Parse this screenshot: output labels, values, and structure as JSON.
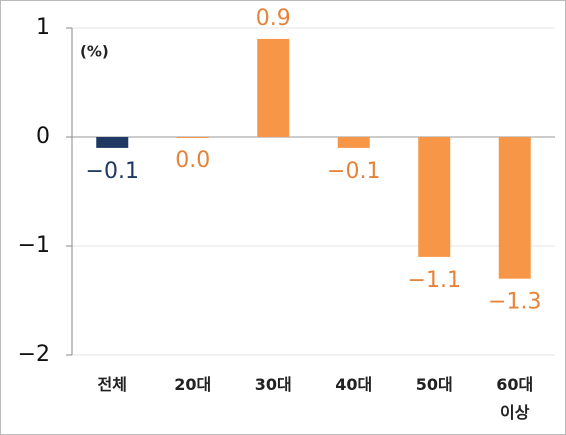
{
  "chart_data": {
    "type": "bar",
    "y_label": "(%)",
    "categories": [
      "전체",
      "20대",
      "30대",
      "40대",
      "50대",
      "60대 이상"
    ],
    "values": [
      -0.1,
      0.0,
      0.9,
      -0.1,
      -1.1,
      -1.3
    ],
    "value_labels": [
      "−0.1",
      "0.0",
      "0.9",
      "−0.1",
      "−1.1",
      "−1.3"
    ],
    "colors": [
      "#1f3864",
      "#f79646",
      "#f79646",
      "#f79646",
      "#f79646",
      "#f79646"
    ],
    "label_colors": [
      "#1f3864",
      "#e6833a",
      "#e6833a",
      "#e6833a",
      "#e6833a",
      "#e6833a"
    ],
    "ylim": [
      -2,
      1
    ],
    "yticks": [
      1,
      0,
      {
        "value": -1,
        "label": "−1"
      },
      {
        "value": -2,
        "label": "−2"
      }
    ],
    "grid": true
  }
}
